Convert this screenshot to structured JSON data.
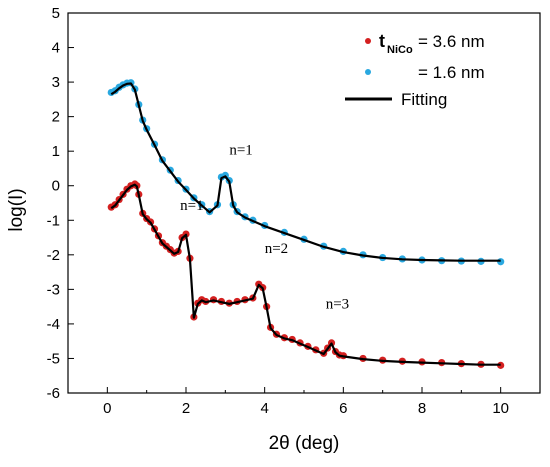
{
  "chart_data": {
    "type": "line",
    "xlabel": "2θ (deg)",
    "ylabel": "log(I)",
    "xlim": [
      -1,
      11
    ],
    "ylim": [
      -6,
      5
    ],
    "xticks": [
      "0",
      "2",
      "4",
      "6",
      "8",
      "10"
    ],
    "yticks": [
      "-6",
      "-5",
      "-4",
      "-3",
      "-2",
      "-1",
      "0",
      "1",
      "2",
      "3",
      "4",
      "5"
    ],
    "legend_position": "top-right",
    "legend": {
      "entry1_prefix": "t",
      "entry1_sub": "NiCo",
      "entry1_text": "= 3.6 nm",
      "entry2_text": "= 1.6 nm",
      "entry3_text": "Fitting"
    },
    "colors": {
      "red_series": "#d42020",
      "blue_series": "#29a8e0",
      "fitting": "#000000"
    },
    "annotations": [
      {
        "text": "n=1",
        "x": 3.4,
        "y": 0.9
      },
      {
        "text": "n=1",
        "x": 2.15,
        "y": -0.7
      },
      {
        "text": "n=2",
        "x": 4.3,
        "y": -1.95
      },
      {
        "text": "n=3",
        "x": 5.85,
        "y": -3.55
      }
    ],
    "series": [
      {
        "name": "t_NiCo = 3.6 nm",
        "style": "scatter",
        "color": "#d42020",
        "x": [
          0.1,
          0.2,
          0.3,
          0.4,
          0.5,
          0.6,
          0.7,
          0.75,
          0.8,
          0.9,
          1.0,
          1.1,
          1.2,
          1.3,
          1.4,
          1.5,
          1.6,
          1.7,
          1.8,
          1.9,
          2.0,
          2.1,
          2.2,
          2.3,
          2.4,
          2.5,
          2.7,
          2.9,
          3.1,
          3.3,
          3.5,
          3.7,
          3.85,
          3.95,
          4.05,
          4.15,
          4.3,
          4.5,
          4.7,
          4.9,
          5.1,
          5.3,
          5.5,
          5.6,
          5.7,
          5.8,
          5.9,
          6.0,
          6.5,
          7.0,
          7.5,
          8.0,
          8.5,
          9.0,
          9.5,
          10.0
        ],
        "y": [
          -0.62,
          -0.55,
          -0.4,
          -0.25,
          -0.1,
          0.0,
          0.05,
          0.0,
          -0.25,
          -0.8,
          -0.95,
          -1.05,
          -1.25,
          -1.45,
          -1.65,
          -1.75,
          -1.85,
          -1.95,
          -1.9,
          -1.5,
          -1.4,
          -2.1,
          -3.8,
          -3.4,
          -3.3,
          -3.35,
          -3.3,
          -3.35,
          -3.4,
          -3.35,
          -3.3,
          -3.25,
          -2.85,
          -2.95,
          -3.5,
          -4.1,
          -4.3,
          -4.4,
          -4.45,
          -4.55,
          -4.65,
          -4.75,
          -4.85,
          -4.7,
          -4.55,
          -4.8,
          -4.9,
          -4.92,
          -5.0,
          -5.05,
          -5.08,
          -5.1,
          -5.12,
          -5.15,
          -5.17,
          -5.2
        ]
      },
      {
        "name": "= 1.6 nm",
        "style": "scatter",
        "color": "#29a8e0",
        "x": [
          0.1,
          0.2,
          0.3,
          0.4,
          0.5,
          0.6,
          0.7,
          0.8,
          0.9,
          1.0,
          1.2,
          1.4,
          1.6,
          1.8,
          2.0,
          2.2,
          2.4,
          2.6,
          2.8,
          2.9,
          3.0,
          3.1,
          3.2,
          3.3,
          3.5,
          3.7,
          4.0,
          4.5,
          5.0,
          5.5,
          6.0,
          6.5,
          7.0,
          7.5,
          8.0,
          8.5,
          9.0,
          9.5,
          10.0
        ],
        "y": [
          2.7,
          2.75,
          2.85,
          2.92,
          2.97,
          2.98,
          2.8,
          2.35,
          1.9,
          1.65,
          1.2,
          0.75,
          0.45,
          0.15,
          -0.1,
          -0.35,
          -0.55,
          -0.75,
          -0.55,
          0.25,
          0.3,
          0.15,
          -0.55,
          -0.75,
          -0.9,
          -1.0,
          -1.15,
          -1.35,
          -1.55,
          -1.75,
          -1.9,
          -2.0,
          -2.08,
          -2.12,
          -2.15,
          -2.17,
          -2.18,
          -2.19,
          -2.2
        ]
      },
      {
        "name": "Fitting",
        "style": "line",
        "color": "#000000",
        "x": [
          0.1,
          0.2,
          0.3,
          0.4,
          0.5,
          0.6,
          0.7,
          0.8,
          0.9,
          1.0,
          1.2,
          1.4,
          1.6,
          1.8,
          2.0,
          2.2,
          2.4,
          2.6,
          2.8,
          2.9,
          3.0,
          3.1,
          3.2,
          3.3,
          3.5,
          3.7,
          4.0,
          4.5,
          5.0,
          5.5,
          6.0,
          6.5,
          7.0,
          7.5,
          8.0,
          8.5,
          9.0,
          9.5,
          10.0
        ],
        "y": [
          2.65,
          2.72,
          2.82,
          2.9,
          2.95,
          2.96,
          2.78,
          2.33,
          1.88,
          1.62,
          1.18,
          0.72,
          0.42,
          0.12,
          -0.12,
          -0.37,
          -0.57,
          -0.77,
          -0.57,
          0.22,
          0.27,
          0.12,
          -0.57,
          -0.77,
          -0.92,
          -1.02,
          -1.17,
          -1.37,
          -1.57,
          -1.77,
          -1.92,
          -2.02,
          -2.09,
          -2.13,
          -2.15,
          -2.16,
          -2.17,
          -2.17,
          -2.17
        ]
      },
      {
        "name": "Fitting",
        "style": "line",
        "color": "#000000",
        "x": [
          0.1,
          0.2,
          0.3,
          0.4,
          0.5,
          0.6,
          0.7,
          0.75,
          0.8,
          0.9,
          1.0,
          1.1,
          1.2,
          1.3,
          1.4,
          1.5,
          1.6,
          1.7,
          1.8,
          1.9,
          2.0,
          2.1,
          2.2,
          2.3,
          2.4,
          2.5,
          2.7,
          2.9,
          3.1,
          3.3,
          3.5,
          3.7,
          3.85,
          3.95,
          4.05,
          4.15,
          4.3,
          4.5,
          4.7,
          4.9,
          5.1,
          5.3,
          5.5,
          5.6,
          5.7,
          5.8,
          5.9,
          6.0,
          6.5,
          7.0,
          7.5,
          8.0,
          8.5,
          9.0,
          9.5,
          10.0
        ],
        "y": [
          -0.65,
          -0.57,
          -0.42,
          -0.27,
          -0.12,
          -0.02,
          0.03,
          -0.02,
          -0.27,
          -0.82,
          -0.97,
          -1.07,
          -1.27,
          -1.47,
          -1.67,
          -1.77,
          -1.87,
          -1.97,
          -1.92,
          -1.52,
          -1.42,
          -2.12,
          -3.82,
          -3.42,
          -3.32,
          -3.37,
          -3.32,
          -3.37,
          -3.42,
          -3.37,
          -3.32,
          -3.27,
          -2.87,
          -2.97,
          -3.52,
          -4.12,
          -4.32,
          -4.42,
          -4.47,
          -4.57,
          -4.67,
          -4.77,
          -4.87,
          -4.72,
          -4.57,
          -4.82,
          -4.92,
          -4.94,
          -5.02,
          -5.07,
          -5.1,
          -5.12,
          -5.14,
          -5.16,
          -5.18,
          -5.18
        ]
      }
    ]
  }
}
